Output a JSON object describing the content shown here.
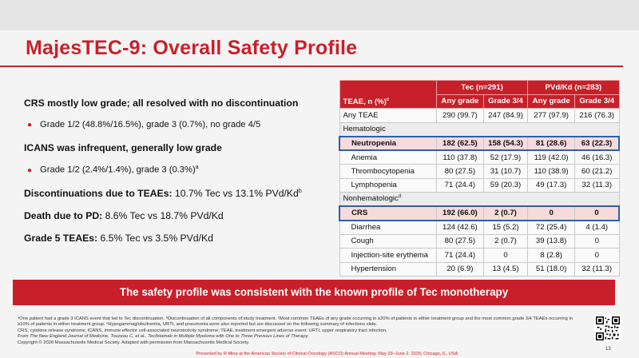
{
  "title": "MajesTEC-9: Overall Safety Profile",
  "bullets": {
    "crs_head": "CRS mostly low grade; all resolved with no discontinuation",
    "crs_sub": "Grade 1/2 (48.8%/16.5%), grade 3 (0.7%), no grade 4/5",
    "icans_head": "ICANS was infrequent, generally low grade",
    "icans_sub": "Grade 1/2 (2.4%/1.4%), grade 3 (0.3%)",
    "icans_sup": "a",
    "disc_label": "Discontinuations due to TEAEs:",
    "disc_value": " 10.7% Tec vs 13.1% PVd/Kd",
    "disc_sup": "b",
    "death_label": "Death due to PD:",
    "death_value": " 8.6% Tec vs 18.7% PVd/Kd",
    "g5_label": "Grade 5 TEAEs:",
    "g5_value": " 6.5% Tec vs 3.5% PVd/Kd"
  },
  "table": {
    "corner": "TEAE, n (%)",
    "corner_sup": "c",
    "group1": "Tec (n=291)",
    "group2": "PVd/Kd (n=283)",
    "col_any": "Any grade",
    "col_g34": "Grade 3/4",
    "any_teae": {
      "label": "Any TEAE",
      "v": [
        "290 (99.7)",
        "247 (84.9)",
        "277 (97.9)",
        "216 (76.3)"
      ]
    },
    "hem_label": "Hematologic",
    "neutropenia": {
      "label": "Neutropenia",
      "v": [
        "182 (62.5)",
        "158 (54.3)",
        "81 (28.6)",
        "63 (22.3)"
      ]
    },
    "anemia": {
      "label": "Anemia",
      "v": [
        "110 (37.8)",
        "52 (17.9)",
        "119 (42.0)",
        "46 (16.3)"
      ]
    },
    "thrombo": {
      "label": "Thrombocytopenia",
      "v": [
        "80 (27.5)",
        "31 (10.7)",
        "110 (38.9)",
        "60 (21.2)"
      ]
    },
    "lympho": {
      "label": "Lymphopenia",
      "v": [
        "71 (24.4)",
        "59 (20.3)",
        "49 (17.3)",
        "32 (11.3)"
      ]
    },
    "nonhem_label": "Nonhematologic",
    "nonhem_sup": "d",
    "crs": {
      "label": "CRS",
      "v": [
        "192 (66.0)",
        "2 (0.7)",
        "0",
        "0"
      ]
    },
    "diarrhea": {
      "label": "Diarrhea",
      "v": [
        "124 (42.6)",
        "15 (5.2)",
        "72 (25.4)",
        "4 (1.4)"
      ]
    },
    "cough": {
      "label": "Cough",
      "v": [
        "80 (27.5)",
        "2 (0.7)",
        "39 (13.8)",
        "0"
      ]
    },
    "injection": {
      "label": "Injection-site erythema",
      "v": [
        "71 (24.4)",
        "0",
        "8 (2.8)",
        "0"
      ]
    },
    "hypertension": {
      "label": "Hypertension",
      "v": [
        "20 (6.9)",
        "13 (4.5)",
        "51 (18.0)",
        "32 (11.3)"
      ]
    }
  },
  "banner": "The safety profile was consistent with the known profile of Tec monotherapy",
  "footnotes": {
    "line1": "ᵃOne patient had a grade 3 ICANS event that led to Tec discontinuation. ᵇDiscontinuation of all components of study treatment. ᶜMost common TEAEs of any grade occurring in ≥20% of patients in either treatment group and the most common grade 3/4 TEAEs occurring in ≥10% of patients in either treatment group. ᵈHypogammaglobulinemia, URTI, and pneumonia were also reported but are discussed on the following summary of infections slide.",
    "line2": "CRS, cytokine release syndrome; ICANS, immune effector cell-associated neurotoxicity syndrome; TEAE, treatment emergent adverse event; URTI, upper respiratory tract infection.",
    "line3": "From The New England Journal of Medicine, Touzeau C, et al., Teclistamab in Multiple Myeloma with One to Three Previous Lines of Therapy.",
    "line4": "Copyright © 2026 Massachusetts Medical Society. Adapted with permission from Massachusetts Medical Society."
  },
  "presented": "Presented by R Mina at the American Society of Clinical Oncology (ASCO) Annual Meeting; May 29–June 2, 2026; Chicago, IL, USA.",
  "page_number": "13",
  "colors": {
    "accent": "#c8202a",
    "highlight_border": "#2e5fa8",
    "highlight_fill": "#f7dada"
  }
}
